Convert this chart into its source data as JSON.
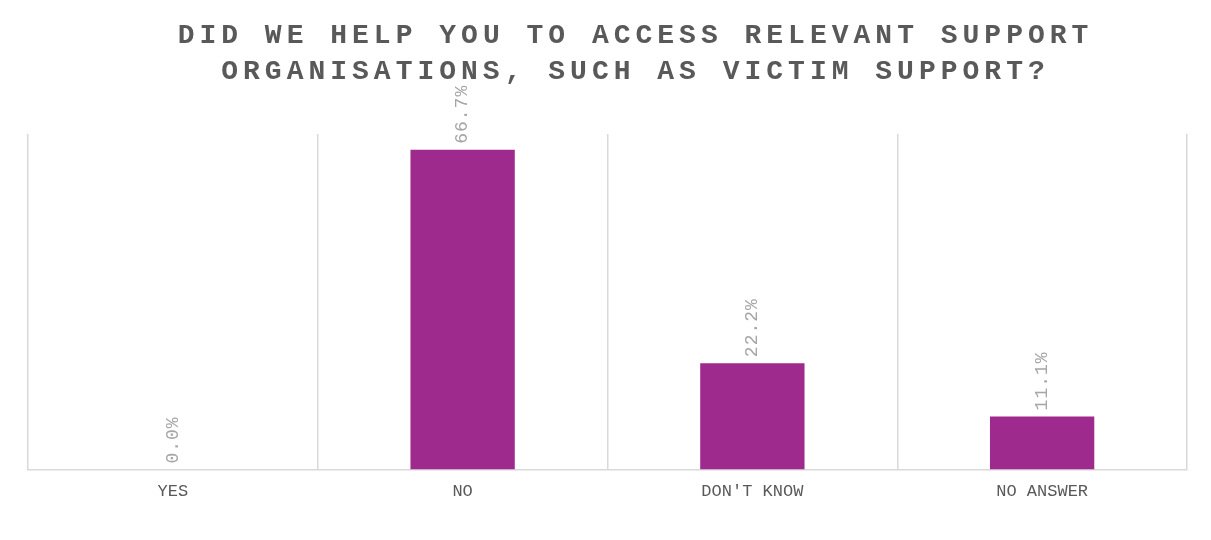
{
  "chart_data": {
    "type": "bar",
    "title": "DID WE HELP YOU TO ACCESS RELEVANT SUPPORT ORGANISATIONS, SUCH AS VICTIM SUPPORT?",
    "categories": [
      "YES",
      "NO",
      "DON'T KNOW",
      "NO ANSWER"
    ],
    "values": [
      0,
      66.7,
      22.2,
      11.1
    ],
    "value_labels": [
      "0.0%",
      "66.7%",
      "22.2%",
      "11.1%"
    ],
    "color": "#9e2a8e",
    "ylim": [
      0,
      70
    ],
    "tick_labels": "x",
    "grid": "x",
    "legend": false
  }
}
